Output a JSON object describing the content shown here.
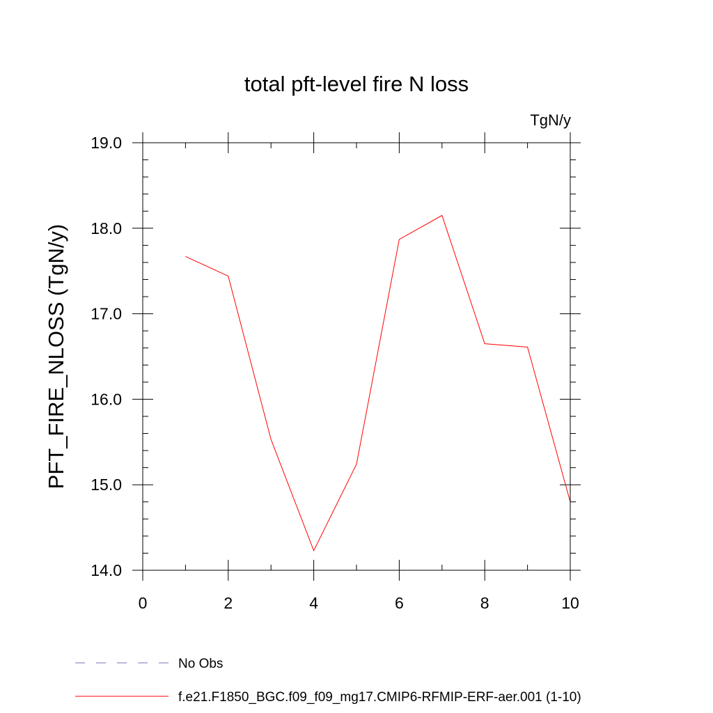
{
  "chart_data": {
    "type": "line",
    "title": "total pft-level fire N loss",
    "units": "TgN/y",
    "xlabel": "",
    "ylabel": "PFT_FIRE_NLOSS  (TgN/y)",
    "xlim": [
      0,
      10
    ],
    "ylim": [
      14.0,
      19.0
    ],
    "x_ticks": [
      0,
      2,
      4,
      6,
      8,
      10
    ],
    "x_tick_labels": [
      "0",
      "2",
      "4",
      "6",
      "8",
      "10"
    ],
    "x_minor_step": 1,
    "y_ticks": [
      14.0,
      15.0,
      16.0,
      17.0,
      18.0,
      19.0
    ],
    "y_tick_labels": [
      "14.0",
      "15.0",
      "16.0",
      "17.0",
      "18.0",
      "19.0"
    ],
    "y_minor_step": 0.2,
    "grid": false,
    "legend_position": "bottom-left",
    "series": [
      {
        "name": "f.e21.F1850_BGC.f09_f09_mg17.CMIP6-RFMIP-ERF-aer.001 (1-10)",
        "color": "#ff0000",
        "style": "solid",
        "x": [
          1,
          2,
          3,
          4,
          5,
          6,
          7,
          8,
          9,
          10
        ],
        "values": [
          17.67,
          17.44,
          15.53,
          14.23,
          15.24,
          17.87,
          18.15,
          16.65,
          16.61,
          14.8
        ]
      }
    ],
    "legend": [
      {
        "label": "No Obs",
        "color": "#7b6fb5",
        "style": "dashed"
      },
      {
        "label": "f.e21.F1850_BGC.f09_f09_mg17.CMIP6-RFMIP-ERF-aer.001 (1-10)",
        "color": "#ff0000",
        "style": "solid"
      }
    ]
  }
}
